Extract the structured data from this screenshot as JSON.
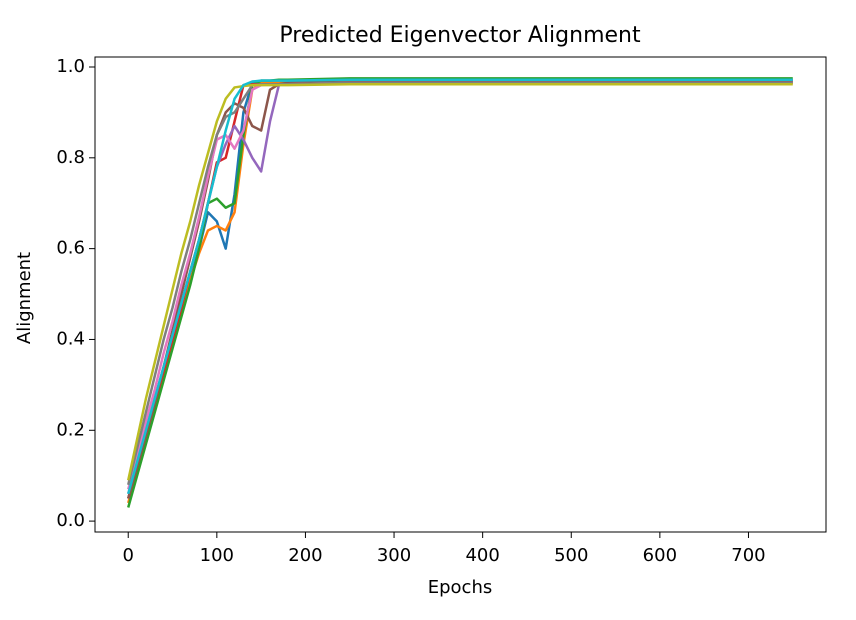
{
  "chart_data": {
    "type": "line",
    "title": "Predicted Eigenvector Alignment",
    "x_label": "Epochs",
    "y_label": "Alignment",
    "x": [
      0,
      10,
      20,
      30,
      40,
      50,
      60,
      70,
      80,
      90,
      100,
      110,
      120,
      130,
      140,
      150,
      160,
      170,
      180,
      250,
      350,
      450,
      550,
      650,
      750
    ],
    "xlim": [
      -37.5,
      787.5
    ],
    "xticks": [
      0,
      100,
      200,
      300,
      400,
      500,
      600,
      700
    ],
    "ylim": [
      -0.024,
      1.022
    ],
    "yticks": [
      {
        "value": 0,
        "label": "0.0"
      },
      0.2,
      0.4,
      0.6,
      0.8,
      {
        "value": 1,
        "label": "1.0"
      }
    ],
    "grid": false,
    "series": [
      {
        "color": "#1f77b4",
        "values": [
          0.05,
          0.11,
          0.18,
          0.25,
          0.32,
          0.39,
          0.46,
          0.53,
          0.6,
          0.68,
          0.66,
          0.6,
          0.72,
          0.9,
          0.965,
          0.97,
          0.97,
          0.97,
          0.97,
          0.97,
          0.97,
          0.97,
          0.97,
          0.97,
          0.97
        ]
      },
      {
        "color": "#ff7f0e",
        "values": [
          0.04,
          0.11,
          0.18,
          0.25,
          0.32,
          0.39,
          0.46,
          0.53,
          0.59,
          0.64,
          0.65,
          0.64,
          0.68,
          0.83,
          0.95,
          0.965,
          0.965,
          0.965,
          0.965,
          0.965,
          0.965,
          0.965,
          0.965,
          0.965,
          0.965
        ]
      },
      {
        "color": "#2ca02c",
        "values": [
          0.03,
          0.1,
          0.17,
          0.24,
          0.31,
          0.38,
          0.45,
          0.52,
          0.6,
          0.7,
          0.71,
          0.69,
          0.7,
          0.85,
          0.96,
          0.97,
          0.97,
          0.972,
          0.972,
          0.975,
          0.975,
          0.975,
          0.975,
          0.975,
          0.975
        ]
      },
      {
        "color": "#d62728",
        "values": [
          0.05,
          0.12,
          0.19,
          0.26,
          0.33,
          0.4,
          0.47,
          0.55,
          0.62,
          0.7,
          0.79,
          0.8,
          0.88,
          0.96,
          0.962,
          0.962,
          0.962,
          0.962,
          0.962,
          0.965,
          0.965,
          0.965,
          0.965,
          0.965,
          0.965
        ]
      },
      {
        "color": "#9467bd",
        "values": [
          0.06,
          0.13,
          0.2,
          0.27,
          0.34,
          0.41,
          0.48,
          0.55,
          0.62,
          0.7,
          0.78,
          0.83,
          0.87,
          0.84,
          0.8,
          0.77,
          0.88,
          0.96,
          0.965,
          0.968,
          0.968,
          0.968,
          0.968,
          0.968,
          0.968
        ]
      },
      {
        "color": "#8c564b",
        "values": [
          0.05,
          0.12,
          0.19,
          0.26,
          0.34,
          0.42,
          0.5,
          0.58,
          0.66,
          0.75,
          0.85,
          0.9,
          0.92,
          0.91,
          0.87,
          0.86,
          0.95,
          0.962,
          0.965,
          0.97,
          0.97,
          0.97,
          0.97,
          0.97,
          0.97
        ]
      },
      {
        "color": "#e377c2",
        "values": [
          0.07,
          0.14,
          0.22,
          0.29,
          0.37,
          0.44,
          0.52,
          0.59,
          0.67,
          0.76,
          0.84,
          0.85,
          0.82,
          0.86,
          0.95,
          0.96,
          0.962,
          0.962,
          0.962,
          0.965,
          0.965,
          0.965,
          0.965,
          0.965,
          0.965
        ]
      },
      {
        "color": "#7f7f7f",
        "values": [
          0.08,
          0.16,
          0.24,
          0.32,
          0.4,
          0.47,
          0.55,
          0.62,
          0.7,
          0.78,
          0.85,
          0.89,
          0.9,
          0.93,
          0.96,
          0.962,
          0.962,
          0.962,
          0.962,
          0.965,
          0.965,
          0.965,
          0.965,
          0.965,
          0.965
        ]
      },
      {
        "color": "#bcbd22",
        "values": [
          0.09,
          0.18,
          0.27,
          0.35,
          0.43,
          0.51,
          0.59,
          0.66,
          0.74,
          0.81,
          0.88,
          0.93,
          0.955,
          0.958,
          0.96,
          0.96,
          0.96,
          0.96,
          0.96,
          0.962,
          0.962,
          0.962,
          0.962,
          0.962,
          0.962
        ]
      },
      {
        "color": "#17becf",
        "values": [
          0.06,
          0.13,
          0.2,
          0.27,
          0.34,
          0.41,
          0.48,
          0.55,
          0.62,
          0.7,
          0.78,
          0.86,
          0.93,
          0.96,
          0.968,
          0.97,
          0.97,
          0.97,
          0.97,
          0.972,
          0.972,
          0.972,
          0.972,
          0.972,
          0.972
        ]
      }
    ]
  }
}
